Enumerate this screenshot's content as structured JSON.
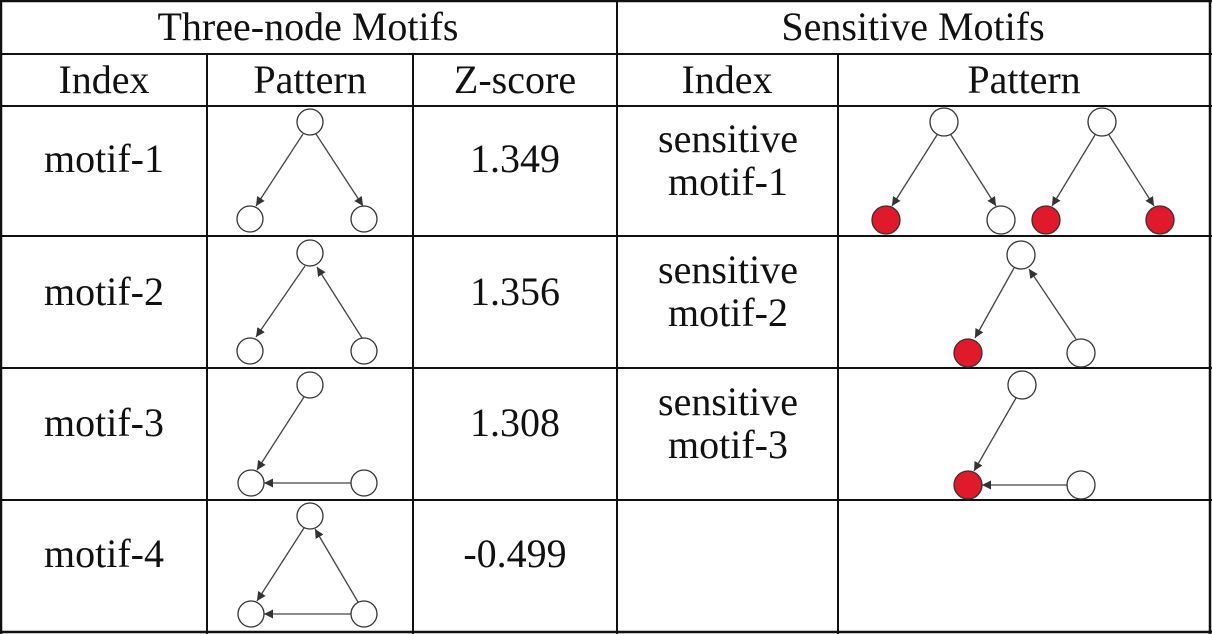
{
  "group_headers": {
    "left": "Three-node Motifs",
    "right": "Sensitive Motifs"
  },
  "column_headers": {
    "index": "Index",
    "pattern": "Pattern",
    "zscore": "Z-score",
    "sens_index": "Index",
    "sens_pattern": "Pattern"
  },
  "colors": {
    "sensitive_node": "#e0192b",
    "normal_node": "#ffffff"
  },
  "rows": [
    {
      "index": "motif-1",
      "zscore": "1.349",
      "pattern": "out-star",
      "sens_index": [
        "sensitive",
        "motif-1"
      ],
      "sens_pattern": "out-star variants with red leaf nodes"
    },
    {
      "index": "motif-2",
      "zscore": "1.356",
      "pattern": "chain",
      "sens_index": [
        "sensitive",
        "motif-2"
      ],
      "sens_pattern": "chain with red end node"
    },
    {
      "index": "motif-3",
      "zscore": "1.308",
      "pattern": "in-star",
      "sens_index": [
        "sensitive",
        "motif-3"
      ],
      "sens_pattern": "in-star with red center node"
    },
    {
      "index": "motif-4",
      "zscore": "-0.499",
      "pattern": "feed-forward loop",
      "sens_index": [
        "",
        ""
      ],
      "sens_pattern": ""
    }
  ]
}
